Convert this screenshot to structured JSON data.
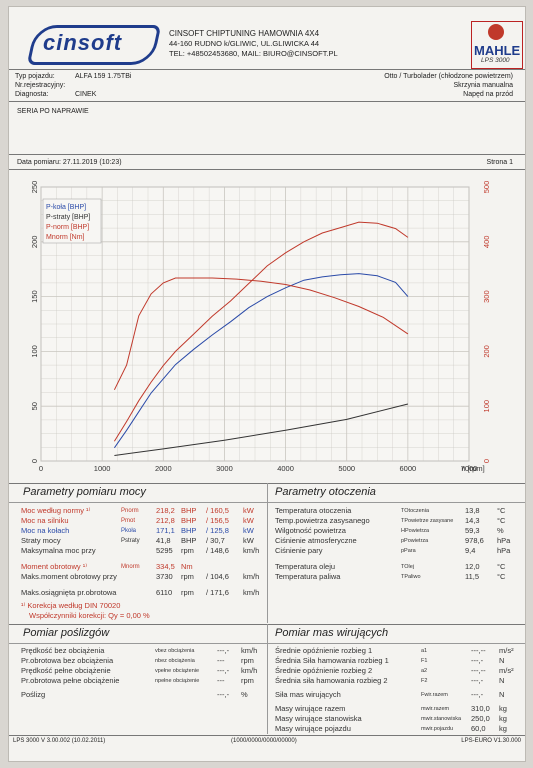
{
  "header": {
    "logo_text": "cinsoft",
    "company": "CINSOFT CHIPTUNING HAMOWNIA 4X4",
    "address": "44-160 RUDNO k/GLIWIC, UL.GLIWICKA 44",
    "contact": "TEL: +48502453680, MAIL: BIURO@CINSOFT.PL",
    "mahle_logo_text": "MAHLE",
    "lps_label": "LPS 3000"
  },
  "vehicle": {
    "type_label": "Typ pojazdu:",
    "type_value": "ALFA 159 1.75TBi",
    "reg_label": "Nr.rejestracyjny:",
    "reg_value": "",
    "diag_label": "Diagnosta:",
    "diag_value": "CINEK",
    "engine_type": "Otto / Turbolader (chłodzone powietrzem)",
    "gearbox": "Skrzynia manualna",
    "drive": "Napęd na przód"
  },
  "series_note": "SERIA PO NAPRAWIE",
  "measurement": {
    "date_label": "Data pomiaru: 27.11.2019 (10:23)",
    "page_label": "Strona 1"
  },
  "colors": {
    "p_kola": "#2a4aa8",
    "p_straty": "#333333",
    "p_norm": "#c0392b",
    "m_norm": "#c0392b",
    "grid": "#c9c6c0"
  },
  "chart_data": {
    "type": "line",
    "xlabel": "n [rpm]",
    "xlim": [
      0,
      7000
    ],
    "x_ticks": [
      0,
      1000,
      2000,
      3000,
      4000,
      5000,
      6000,
      7000
    ],
    "y_left_lim": [
      0,
      250
    ],
    "y_left_ticks": [
      0,
      50,
      100,
      150,
      200,
      250
    ],
    "y_right_lim": [
      0,
      500
    ],
    "y_right_ticks": [
      0,
      100,
      200,
      300,
      400,
      500
    ],
    "grid": true,
    "legend_placement": "top-left",
    "series": [
      {
        "name": "P-koła [BHP]",
        "axis": "left",
        "x": [
          1200,
          1400,
          1600,
          1800,
          2000,
          2200,
          2500,
          2800,
          3100,
          3400,
          3700,
          4000,
          4300,
          4600,
          4900,
          5200,
          5500,
          5800,
          6000
        ],
        "y": [
          12,
          28,
          45,
          62,
          75,
          88,
          102,
          115,
          127,
          140,
          150,
          158,
          165,
          168,
          170,
          171,
          169,
          163,
          150
        ]
      },
      {
        "name": "P-straty [BHP]",
        "axis": "left",
        "x": [
          1200,
          2000,
          3000,
          4000,
          5000,
          6000
        ],
        "y": [
          5,
          11,
          19,
          28,
          38,
          52
        ]
      },
      {
        "name": "P-norm [BHP]",
        "axis": "left",
        "x": [
          1200,
          1400,
          1600,
          1800,
          2000,
          2200,
          2500,
          2800,
          3100,
          3400,
          3700,
          4000,
          4300,
          4600,
          4900,
          5200,
          5500,
          5800,
          6000
        ],
        "y": [
          18,
          36,
          55,
          72,
          87,
          100,
          116,
          132,
          146,
          162,
          178,
          190,
          200,
          208,
          213,
          218,
          217,
          212,
          204
        ]
      },
      {
        "name": "Mnorm [Nm]",
        "axis": "right",
        "x": [
          1200,
          1400,
          1600,
          1800,
          2000,
          2200,
          2400,
          2800,
          3200,
          3600,
          4000,
          4400,
          4800,
          5200,
          5600,
          6000
        ],
        "y": [
          130,
          175,
          265,
          305,
          325,
          334,
          334,
          334,
          332,
          328,
          322,
          312,
          298,
          282,
          262,
          232
        ]
      }
    ]
  },
  "power_params": {
    "title": "Parametry pomiaru mocy",
    "rows": [
      {
        "label": "Moc według normy ¹⁾",
        "sym": "Pnorm",
        "v1": "218,2",
        "u1": "BHP",
        "v2": "160,5",
        "u2": "kW",
        "color": "red"
      },
      {
        "label": "Moc na silniku",
        "sym": "Pmot",
        "v1": "212,8",
        "u1": "BHP",
        "v2": "156,5",
        "u2": "kW",
        "color": "red"
      },
      {
        "label": "Moc na kołach",
        "sym": "Pkoła",
        "v1": "171,1",
        "u1": "BHP",
        "v2": "125,8",
        "u2": "kW",
        "color": "blue"
      },
      {
        "label": "Straty mocy",
        "sym": "Pstraty",
        "v1": "41,8",
        "u1": "BHP",
        "v2": "30,7",
        "u2": "kW",
        "color": "dark"
      },
      {
        "label": "Maksymalna moc przy",
        "sym": "",
        "v1": "5295",
        "u1": "rpm",
        "v2": "148,6",
        "u2": "km/h",
        "color": "dark"
      }
    ],
    "torque_rows": [
      {
        "label": "Moment obrotowy ¹⁾",
        "sym": "Mnorm",
        "v1": "334,5",
        "u1": "Nm",
        "v2": "",
        "u2": "",
        "color": "red"
      },
      {
        "label": "Maks.moment obrotowy przy",
        "sym": "",
        "v1": "3730",
        "u1": "rpm",
        "v2": "104,6",
        "u2": "km/h",
        "color": "dark"
      }
    ],
    "max_rpm": {
      "label": "Maks.osiągnięta pr.obrotowa",
      "v1": "6110",
      "u1": "rpm",
      "v2": "171,6",
      "u2": "km/h"
    },
    "correction": "¹⁾ Korekcja według DIN 70020",
    "coeff": "Współczynniki korekcji: Qy = 0,00 %"
  },
  "env_params": {
    "title": "Parametry otoczenia",
    "rows": [
      {
        "label": "Temperatura otoczenia",
        "sym": "TOtoczenia",
        "val": "13,8",
        "unit": "°C"
      },
      {
        "label": "Temp.powietrza zasysanego",
        "sym": "TPowietrze zasysane",
        "val": "14,3",
        "unit": "°C"
      },
      {
        "label": "Wilgotność powietrza",
        "sym": "HPowietrza",
        "val": "59,3",
        "unit": "%"
      },
      {
        "label": "Ciśnienie atmosferyczne",
        "sym": "pPowietrza",
        "val": "978,6",
        "unit": "hPa"
      },
      {
        "label": "Ciśnienie pary",
        "sym": "pPara",
        "val": "9,4",
        "unit": "hPa"
      }
    ],
    "rows2": [
      {
        "label": "Temperatura oleju",
        "sym": "TOlej",
        "val": "12,0",
        "unit": "°C"
      },
      {
        "label": "Temperatura paliwa",
        "sym": "TPaliwo",
        "val": "11,5",
        "unit": "°C"
      }
    ]
  },
  "slip": {
    "title": "Pomiar poślizgów",
    "rows": [
      {
        "label": "Prędkość bez obciążenia",
        "sym": "vbez obciążenia",
        "val": "---,-",
        "unit": "km/h"
      },
      {
        "label": "Pr.obrotowa bez obciążenia",
        "sym": "nbez obciążenia",
        "val": "---",
        "unit": "rpm"
      },
      {
        "label": "Prędkość pełne obciążenie",
        "sym": "vpełne obciążenie",
        "val": "---,-",
        "unit": "km/h"
      },
      {
        "label": "Pr.obrotowa pełne obciążenie",
        "sym": "npełne obciążenie",
        "val": "---",
        "unit": "rpm"
      },
      {
        "label": "Poślizg",
        "sym": "",
        "val": "---,-",
        "unit": "%"
      }
    ]
  },
  "masses": {
    "title": "Pomiar mas wirujących",
    "rows": [
      {
        "label": "Średnie opóźnienie rozbieg 1",
        "sym": "a1",
        "val": "---,--",
        "unit": "m/s²"
      },
      {
        "label": "Średnia Siła hamowania rozbieg 1",
        "sym": "F1",
        "val": "---,-",
        "unit": "N"
      },
      {
        "label": "Średnie opóźnienie rozbieg 2",
        "sym": "a2",
        "val": "---,--",
        "unit": "m/s²"
      },
      {
        "label": "Średnia siła hamowania rozbieg 2",
        "sym": "F2",
        "val": "---,-",
        "unit": "N"
      },
      {
        "label": "Siła mas wirujących",
        "sym": "Fwir.razem",
        "val": "---,-",
        "unit": "N"
      },
      {
        "label": "Masy wirujące razem",
        "sym": "mwir.razem",
        "val": "310,0",
        "unit": "kg"
      },
      {
        "label": "Masy wirujące stanowiska",
        "sym": "mwir.stanowiska",
        "val": "250,0",
        "unit": "kg"
      },
      {
        "label": "Masy wirujące pojazdu",
        "sym": "mwir.pojazdu",
        "val": "60,0",
        "unit": "kg"
      }
    ]
  },
  "footer": {
    "left": "LPS 3000 V 3.00.002 (10.02.2011)",
    "center": "(1000/0000/0000/00000)",
    "right": "LPS-EURO V1.30.000"
  }
}
